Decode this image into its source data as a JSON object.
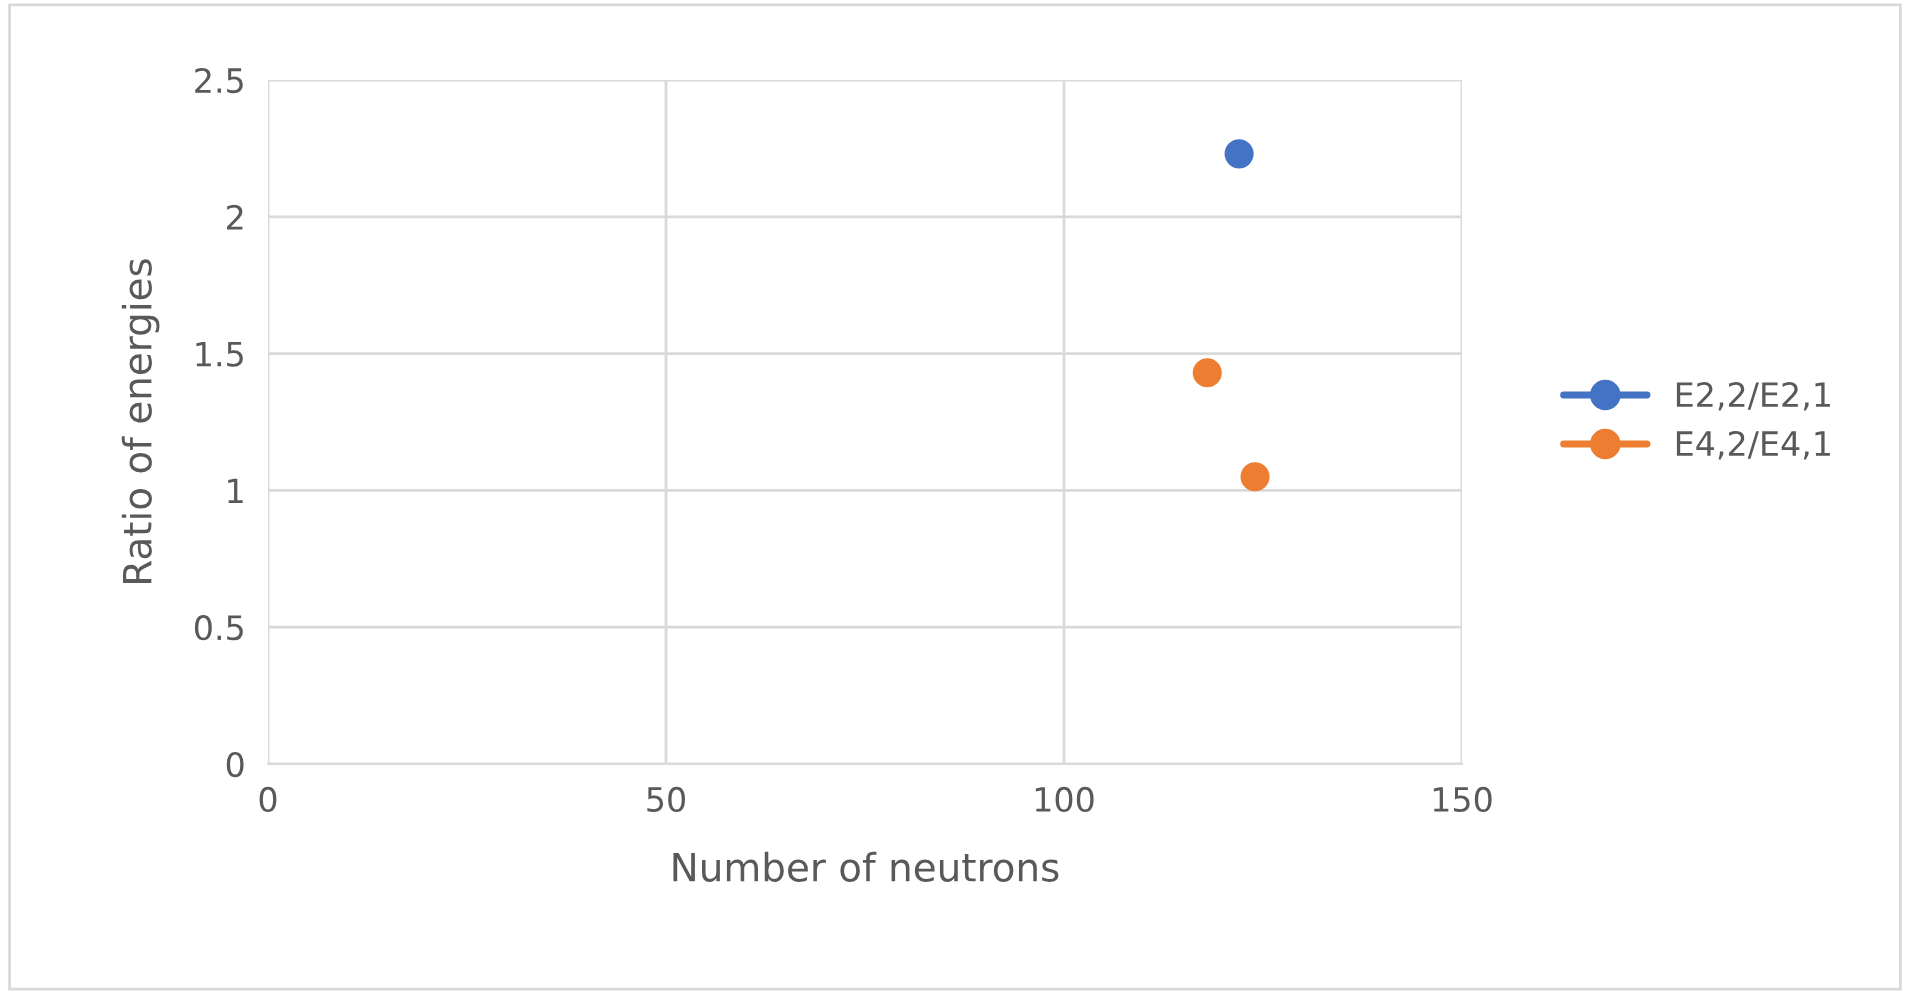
{
  "chart_data": {
    "type": "scatter",
    "xlabel": "Number of neutrons",
    "ylabel": "Ratio of energies",
    "series": [
      {
        "name": "E2,2/E2,1",
        "color": "#4472c4",
        "x": [
          122
        ],
        "values": [
          2.23
        ]
      },
      {
        "name": "E4,2/E4,1",
        "color": "#ed7d31",
        "x": [
          118,
          124
        ],
        "values": [
          1.43,
          1.05
        ]
      }
    ],
    "xlim": [
      0,
      150
    ],
    "xticks": [
      0,
      50,
      100,
      150
    ],
    "ylim": [
      0,
      2.5
    ],
    "yticks": [
      0,
      0.5,
      1,
      1.5,
      2,
      2.5
    ],
    "grid": true,
    "legend": "right",
    "marker": "circle"
  }
}
